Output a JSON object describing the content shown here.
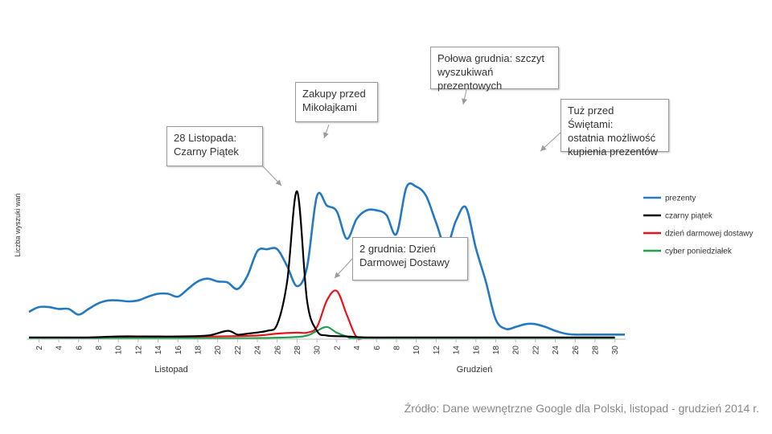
{
  "chart_data": {
    "type": "line",
    "ylabel": "Liczba wyszuki wań",
    "x_ticks": [
      "2",
      "4",
      "6",
      "8",
      "10",
      "12",
      "14",
      "16",
      "18",
      "20",
      "22",
      "24",
      "26",
      "28",
      "30",
      "2",
      "4",
      "6",
      "8",
      "10",
      "12",
      "14",
      "16",
      "18",
      "20",
      "22",
      "24",
      "26",
      "28",
      "30"
    ],
    "x_groups": [
      "Listopad",
      "Grudzień"
    ],
    "legend": {
      "placement": "right"
    },
    "grid": false,
    "series": [
      {
        "name": "prezenty",
        "color": "#2579c1",
        "x": [
          1,
          2,
          3,
          4,
          5,
          6,
          7,
          8,
          9,
          10,
          11,
          12,
          13,
          14,
          15,
          16,
          17,
          18,
          19,
          20,
          21,
          22,
          23,
          24,
          25,
          26,
          27,
          28,
          29,
          30,
          31,
          32,
          33,
          34,
          35,
          36,
          37,
          38,
          39,
          40,
          41,
          42,
          43,
          44,
          45,
          46,
          47,
          48,
          49,
          50,
          51,
          52,
          53,
          54,
          55,
          56,
          57,
          58,
          59,
          60,
          61
        ],
        "values": [
          28,
          33,
          33,
          31,
          31,
          25,
          31,
          37,
          40,
          40,
          39,
          40,
          44,
          47,
          47,
          44,
          52,
          60,
          63,
          60,
          59,
          52,
          66,
          92,
          94,
          94,
          76,
          55,
          75,
          150,
          140,
          134,
          105,
          126,
          135,
          135,
          130,
          110,
          159,
          160,
          150,
          122,
          96,
          124,
          138,
          95,
          60,
          20,
          10,
          12,
          15,
          15,
          12,
          8,
          5,
          4,
          4,
          4,
          4,
          4,
          4
        ]
      },
      {
        "name": "czarny piątek",
        "color": "#000000",
        "x": [
          1,
          4,
          7,
          10,
          13,
          16,
          19,
          21,
          22,
          23,
          25,
          26,
          27,
          28,
          29,
          30,
          31,
          33,
          35,
          38,
          42,
          46,
          50,
          55,
          60
        ],
        "values": [
          1,
          1,
          1,
          2,
          2,
          2,
          3,
          8,
          4,
          5,
          8,
          15,
          60,
          155,
          40,
          8,
          3,
          2,
          1,
          1,
          1,
          1,
          1,
          1,
          1
        ]
      },
      {
        "name": "dzień darmowej dostawy",
        "color": "#e8141b",
        "x": [
          1,
          10,
          20,
          24,
          26,
          28,
          29,
          30,
          31,
          32,
          33,
          34,
          35,
          40,
          60
        ],
        "values": [
          0,
          1,
          2,
          3,
          5,
          6,
          6,
          12,
          40,
          50,
          25,
          1,
          0,
          0,
          0
        ]
      },
      {
        "name": "cyber poniedziałek",
        "color": "#21a050",
        "x": [
          1,
          10,
          20,
          27,
          29,
          30,
          31,
          32,
          33,
          34,
          40,
          60
        ],
        "values": [
          0,
          0,
          0,
          1,
          3,
          8,
          12,
          6,
          2,
          0,
          0,
          0
        ]
      }
    ],
    "annotations": [
      {
        "text": "28 Listopada:\nCzarny Piątek"
      },
      {
        "text": "Zakupy przed\nMikołajkami"
      },
      {
        "text": "Połowa grudnia: szczyt\nwyszukiwań\nprezentowych"
      },
      {
        "text": "Tuż przed Świętami:\nostatnia możliwość\nkupienia prezentów"
      },
      {
        "text": "2 grudnia: Dzień\nDarmowej Dostawy"
      }
    ]
  },
  "source_text": "Źródło: Dane wewnętrzne Google dla Polski, listopad - grudzień 2014 r."
}
